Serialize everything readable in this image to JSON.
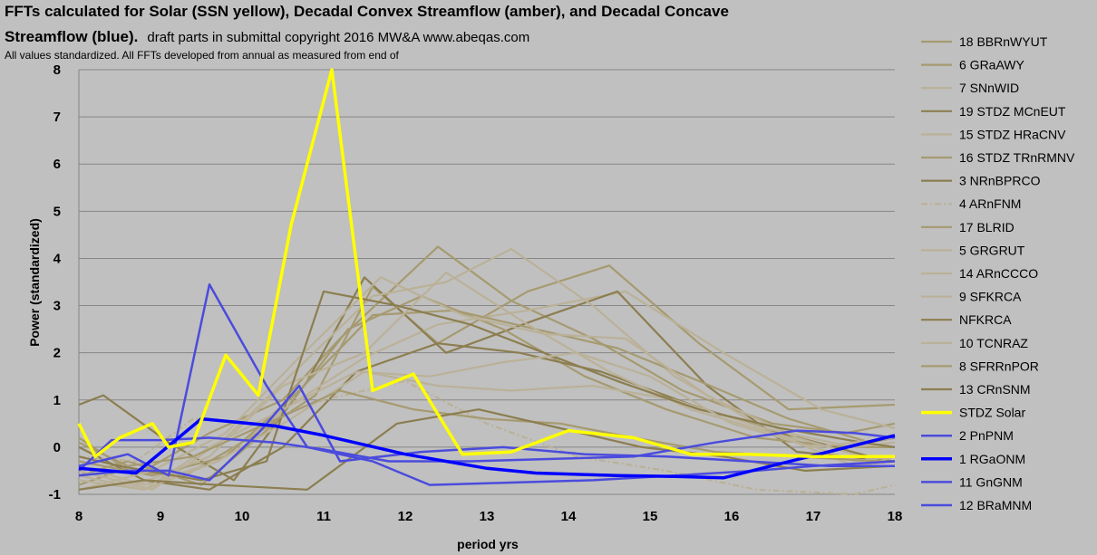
{
  "chart_data": {
    "type": "line",
    "title_bold_line1": "FFTs calculated for Solar (SSN yellow), Decadal Convex Streamflow (amber), and Decadal Concave",
    "title_bold_line2": "Streamflow (blue).",
    "title_note": "draft  parts in submittal copyright 2016 MW&A www.abeqas.com",
    "subtitle": "All values standardized.  All FFTs developed from annual as measured from end of",
    "xlabel": "period yrs",
    "ylabel": "Power (standardized)",
    "xlim": [
      8,
      18
    ],
    "ylim": [
      -1,
      8
    ],
    "xticks": [
      "8",
      "9",
      "10",
      "11",
      "12",
      "13",
      "14",
      "15",
      "16",
      "17",
      "18"
    ],
    "yticks": [
      "-1",
      "0",
      "1",
      "2",
      "3",
      "4",
      "5",
      "6",
      "7",
      "8"
    ],
    "colors": {
      "background": "#c0c0c0",
      "grid": "#868686",
      "solar": "#ffff00",
      "blue_strong": "#0000ff",
      "blue_light": "#4b4bdd",
      "amber_dark": "#8c7e50",
      "amber_mid": "#a69a70",
      "amber_light": "#bab198"
    },
    "series": [
      {
        "name": "18  BBRnWYUT",
        "group": "amber",
        "shade": "amber_mid",
        "x": [
          8,
          8.7,
          9.6,
          10.5,
          11.2,
          12.4,
          13.3,
          14.3,
          15.4,
          16.5,
          17.4,
          18
        ],
        "y": [
          0.2,
          -0.6,
          0.3,
          1.0,
          2.3,
          4.25,
          3.1,
          2.3,
          1.2,
          0.5,
          0.3,
          0.5
        ]
      },
      {
        "name": "6  GRaAWY",
        "group": "amber",
        "shade": "amber_mid",
        "x": [
          8,
          8.5,
          9.3,
          10.1,
          10.9,
          11.6,
          12.4,
          13.5,
          14.5,
          15.6,
          16.7,
          18
        ],
        "y": [
          -0.8,
          -0.5,
          -0.6,
          0.2,
          1.1,
          3.4,
          2.2,
          3.3,
          3.85,
          2.2,
          0.8,
          0.9
        ]
      },
      {
        "name": "7  SNnWID",
        "group": "amber",
        "shade": "amber_light",
        "x": [
          8,
          8.8,
          9.7,
          10.6,
          11.5,
          12.4,
          13.5,
          14.7,
          15.9,
          17.1,
          18
        ],
        "y": [
          -0.4,
          -0.8,
          -0.3,
          0.9,
          1.9,
          2.6,
          2.9,
          3.3,
          2.0,
          0.8,
          0.4
        ]
      },
      {
        "name": "19 STDZ MCnEUT",
        "group": "amber",
        "shade": "amber_dark",
        "x": [
          8,
          8.3,
          9.1,
          9.9,
          10.8,
          11.5,
          12.5,
          13.6,
          14.6,
          15.7,
          16.8,
          18
        ],
        "y": [
          0.9,
          1.1,
          0.1,
          -0.7,
          1.4,
          3.6,
          2.0,
          2.7,
          3.3,
          1.3,
          -0.1,
          -0.3
        ]
      },
      {
        "name": "15 STDZ HRaCNV",
        "group": "amber",
        "shade": "amber_light",
        "x": [
          8,
          8.9,
          9.8,
          10.7,
          11.6,
          12.5,
          13.3,
          14.3,
          15.3,
          16.4,
          17.5,
          18
        ],
        "y": [
          -0.5,
          -0.9,
          0.2,
          1.7,
          3.2,
          3.5,
          4.2,
          3.0,
          1.5,
          0.4,
          -0.3,
          -0.2
        ]
      },
      {
        "name": "16 STDZ TRnRMNV",
        "group": "amber",
        "shade": "amber_mid",
        "x": [
          8,
          8.6,
          9.5,
          10.4,
          11.3,
          12.2,
          13.2,
          14.2,
          15.2,
          16.3,
          17.4,
          18
        ],
        "y": [
          -0.6,
          -0.3,
          -0.8,
          0.5,
          2.5,
          3.2,
          2.5,
          1.5,
          0.8,
          0.2,
          0.0,
          0.0
        ]
      },
      {
        "name": "3  NRnBPRCO",
        "group": "amber",
        "shade": "amber_dark",
        "x": [
          8,
          8.8,
          9.6,
          10.5,
          11.4,
          12.4,
          13.4,
          14.4,
          15.5,
          16.6,
          17.7,
          18
        ],
        "y": [
          0.0,
          -0.7,
          -0.9,
          0.0,
          1.6,
          2.2,
          2.0,
          1.6,
          0.9,
          0.3,
          -0.2,
          -0.2
        ]
      },
      {
        "name": "4  ARnFNM",
        "group": "amber",
        "shade": "amber_light",
        "dash": true,
        "x": [
          8,
          8.7,
          9.4,
          10.2,
          11.0,
          12.0,
          13.0,
          14.1,
          15.2,
          16.3,
          17.5,
          18
        ],
        "y": [
          -0.2,
          -0.3,
          0.6,
          0.5,
          1.0,
          1.4,
          0.5,
          -0.2,
          -0.5,
          -0.9,
          -1.0,
          -0.8
        ]
      },
      {
        "name": "17  BLRID",
        "group": "amber",
        "shade": "amber_mid",
        "x": [
          8,
          8.9,
          9.8,
          10.7,
          11.6,
          12.6,
          13.6,
          14.6,
          15.6,
          16.7,
          17.7,
          18
        ],
        "y": [
          -0.3,
          -0.6,
          -0.2,
          1.2,
          2.8,
          2.9,
          2.5,
          2.1,
          1.4,
          0.6,
          0.1,
          0.2
        ]
      },
      {
        "name": "5  GRGRUT",
        "group": "amber",
        "shade": "amber_light",
        "x": [
          8,
          8.8,
          9.7,
          10.6,
          11.5,
          12.4,
          13.3,
          14.3,
          15.3,
          16.4,
          17.5,
          18
        ],
        "y": [
          -0.7,
          -0.9,
          -0.3,
          0.6,
          1.6,
          1.3,
          1.2,
          1.3,
          1.0,
          0.4,
          0.0,
          0.1
        ]
      },
      {
        "name": "14  ARnCCCO",
        "group": "amber",
        "shade": "amber_light",
        "x": [
          8,
          8.7,
          9.6,
          10.5,
          11.5,
          12.5,
          13.5,
          14.5,
          15.5,
          16.5,
          17.5,
          18
        ],
        "y": [
          -0.5,
          -0.8,
          -0.2,
          1.3,
          2.0,
          3.7,
          2.6,
          1.6,
          0.8,
          0.3,
          -0.4,
          -0.3
        ]
      },
      {
        "name": "9  SFKRCA",
        "group": "amber",
        "shade": "amber_light",
        "x": [
          8,
          8.9,
          9.8,
          10.7,
          11.7,
          12.7,
          13.7,
          14.7,
          15.7,
          16.8,
          17.8,
          18
        ],
        "y": [
          -0.9,
          -0.5,
          0.3,
          1.9,
          3.6,
          2.8,
          2.4,
          2.3,
          1.1,
          0.2,
          -0.3,
          -0.2
        ]
      },
      {
        "name": "NFKRCA",
        "group": "amber",
        "shade": "amber_dark",
        "x": [
          8,
          8.5,
          9.5,
          10.3,
          11.0,
          11.9,
          12.8,
          13.7,
          14.6,
          15.6,
          16.6,
          17.6,
          18
        ],
        "y": [
          -0.2,
          -0.4,
          -0.7,
          -0.3,
          3.3,
          3.0,
          2.6,
          2.0,
          1.4,
          0.8,
          0.4,
          0.1,
          0.0
        ]
      },
      {
        "name": "10  TCNRAZ",
        "group": "amber",
        "shade": "amber_light",
        "x": [
          8,
          8.8,
          9.6,
          10.5,
          11.4,
          12.3,
          13.2,
          14.1,
          15.0,
          16.0,
          17.0,
          18
        ],
        "y": [
          -0.6,
          -0.9,
          0.0,
          0.8,
          1.6,
          1.5,
          1.8,
          2.0,
          1.5,
          0.5,
          0.0,
          0.2
        ]
      },
      {
        "name": "8  SFRRnPOR",
        "group": "amber",
        "shade": "amber_mid",
        "x": [
          8,
          8.6,
          9.4,
          10.3,
          11.2,
          12.1,
          13.0,
          13.9,
          14.8,
          15.8,
          16.8,
          17.8,
          18
        ],
        "y": [
          0.1,
          -0.4,
          -0.2,
          0.5,
          1.2,
          0.8,
          0.6,
          0.5,
          0.2,
          -0.1,
          -0.2,
          -0.3,
          -0.3
        ]
      },
      {
        "name": "13  CRnSNM",
        "group": "amber",
        "shade": "amber_dark",
        "x": [
          8,
          8.8,
          9.7,
          10.8,
          11.9,
          12.9,
          13.9,
          14.9,
          15.9,
          16.9,
          18
        ],
        "y": [
          -0.9,
          -0.7,
          -0.8,
          -0.9,
          0.5,
          0.8,
          0.4,
          0.0,
          -0.2,
          -0.5,
          -0.4
        ]
      },
      {
        "name": "STDZ Solar",
        "group": "solar",
        "x": [
          8,
          8.2,
          8.5,
          8.9,
          9.1,
          9.4,
          9.8,
          10.2,
          10.6,
          11.1,
          11.6,
          12.1,
          12.7,
          13.3,
          14.0,
          14.8,
          15.5,
          16.2,
          17.0,
          18
        ],
        "y": [
          0.5,
          -0.2,
          0.2,
          0.5,
          0.0,
          0.1,
          1.95,
          1.1,
          4.7,
          8.0,
          1.2,
          1.55,
          -0.15,
          -0.1,
          0.35,
          0.2,
          -0.15,
          -0.15,
          -0.2,
          -0.2
        ]
      },
      {
        "name": "2  PnPNM",
        "group": "blue",
        "weight": "light",
        "x": [
          8,
          8.4,
          9.0,
          9.6,
          10.4,
          11.0,
          11.8,
          12.8,
          13.8,
          14.8,
          15.8,
          16.8,
          17.5,
          18
        ],
        "y": [
          -0.5,
          0.15,
          0.15,
          0.2,
          0.1,
          -0.05,
          -0.3,
          -0.3,
          -0.25,
          -0.2,
          0.1,
          0.35,
          0.3,
          0.2
        ]
      },
      {
        "name": "1  RGaONM",
        "group": "blue",
        "weight": "strong",
        "x": [
          8,
          8.7,
          9.5,
          10.4,
          11.0,
          12.0,
          13.0,
          13.6,
          14.6,
          15.3,
          15.9,
          16.6,
          17.3,
          18
        ],
        "y": [
          -0.45,
          -0.55,
          0.6,
          0.45,
          0.25,
          -0.15,
          -0.45,
          -0.55,
          -0.6,
          -0.62,
          -0.65,
          -0.35,
          -0.05,
          0.25
        ]
      },
      {
        "name": "11  GnGNM",
        "group": "blue",
        "weight": "light",
        "x": [
          8,
          8.6,
          9.1,
          9.6,
          10.2,
          10.7,
          11.2,
          12.2,
          13.2,
          14.2,
          15.2,
          16.2,
          17.2,
          18
        ],
        "y": [
          -0.6,
          -0.5,
          -0.5,
          -0.7,
          0.3,
          1.3,
          -0.3,
          -0.1,
          0.0,
          -0.15,
          -0.2,
          -0.3,
          -0.4,
          -0.4
        ]
      },
      {
        "name": "12  BRaMNM",
        "group": "blue",
        "weight": "light",
        "x": [
          8,
          8.6,
          9.1,
          9.6,
          10.3,
          10.8,
          11.6,
          12.3,
          13.3,
          14.3,
          15.3,
          16.3,
          17.0,
          18
        ],
        "y": [
          -0.4,
          -0.15,
          -0.6,
          3.45,
          1.3,
          0.0,
          -0.3,
          -0.8,
          -0.75,
          -0.7,
          -0.6,
          -0.5,
          -0.4,
          -0.3
        ]
      }
    ]
  }
}
